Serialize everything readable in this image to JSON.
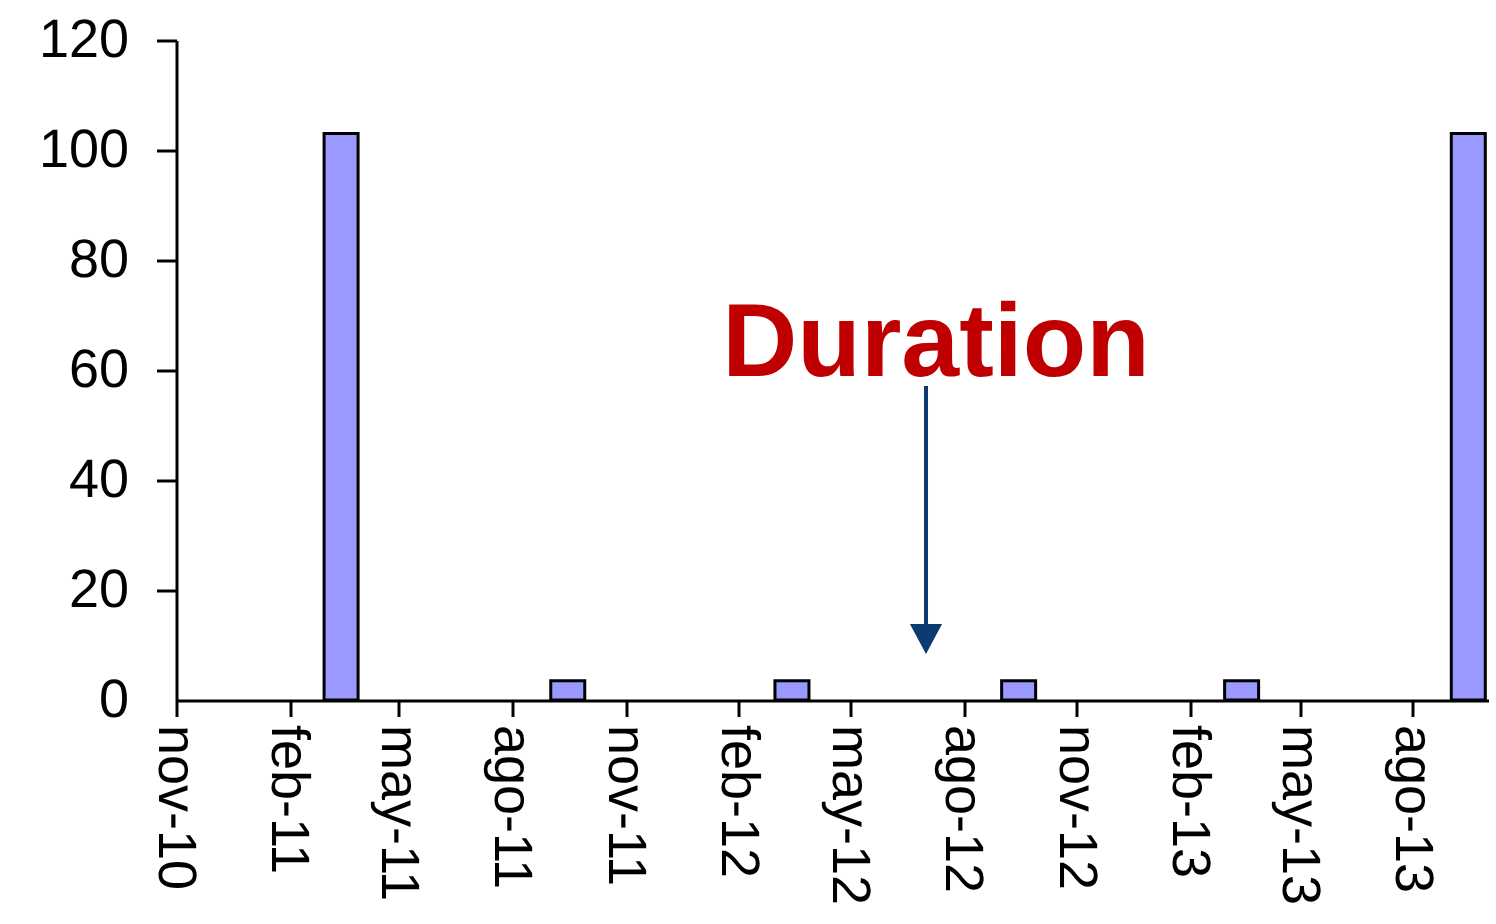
{
  "chart_data": {
    "type": "bar",
    "x": [
      "2011-03-15",
      "2011-09-15",
      "2012-03-15",
      "2012-09-15",
      "2013-03-15",
      "2013-09-15"
    ],
    "values": [
      103,
      3.5,
      3.5,
      3.5,
      3.5,
      103
    ],
    "color": "#9999ff",
    "xlim": [
      "2010-11",
      "2013-10"
    ],
    "xticks": [
      {
        "value": "2010-11",
        "label": "nov-10"
      },
      {
        "value": "2011-02",
        "label": "feb-11"
      },
      {
        "value": "2011-05",
        "label": "may-11"
      },
      {
        "value": "2011-08",
        "label": "ago-11"
      },
      {
        "value": "2011-11",
        "label": "nov-11"
      },
      {
        "value": "2012-02",
        "label": "feb-12"
      },
      {
        "value": "2012-05",
        "label": "may-12"
      },
      {
        "value": "2012-08",
        "label": "ago-12"
      },
      {
        "value": "2012-11",
        "label": "nov-12"
      },
      {
        "value": "2013-02",
        "label": "feb-13"
      },
      {
        "value": "2013-05",
        "label": "may-13"
      },
      {
        "value": "2013-08",
        "label": "ago-13"
      }
    ],
    "ylim": [
      0,
      120
    ],
    "yticks": [
      0,
      20,
      40,
      60,
      80,
      100,
      120
    ],
    "annotations": [
      "Duration"
    ]
  }
}
